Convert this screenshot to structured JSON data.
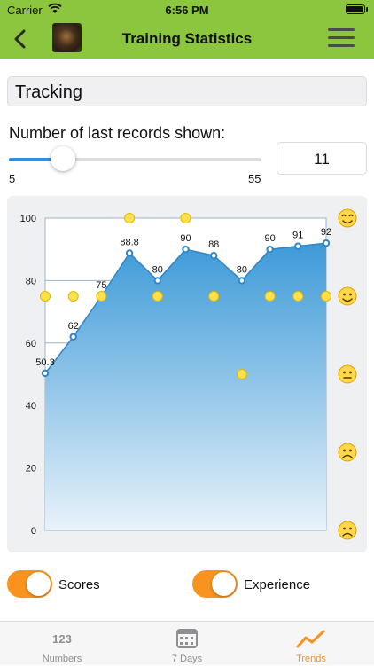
{
  "status_bar": {
    "carrier": "Carrier",
    "time": "6:56 PM"
  },
  "nav": {
    "title": "Training Statistics",
    "back_icon": "chevron-left-icon",
    "menu_icon": "hamburger-menu-icon"
  },
  "category_field": {
    "value": "Tracking"
  },
  "records_slider": {
    "label": "Number of last records shown:",
    "min_label": "5",
    "max_label": "55",
    "min": 5,
    "max": 55,
    "value": 11
  },
  "records_count": {
    "value": "11"
  },
  "chart_data": {
    "type": "line",
    "y_ticks": [
      "0",
      "20",
      "40",
      "60",
      "80",
      "100"
    ],
    "ylim": [
      0,
      100
    ],
    "grid": true,
    "series": [
      {
        "values": [
          50.3,
          62,
          75,
          88.8,
          80,
          90,
          88,
          80,
          90,
          91,
          92
        ],
        "labels": [
          "50.3",
          "62",
          "75",
          "88.8",
          "80",
          "90",
          "88",
          "80",
          "90",
          "91",
          "92"
        ]
      }
    ],
    "experience_levels": [
      4,
      4,
      4,
      5,
      4,
      5,
      4,
      3,
      4,
      4,
      4
    ],
    "experience_scale": [
      "very-sad-face-icon",
      "sad-face-icon",
      "neutral-face-icon",
      "smile-face-icon",
      "happy-face-icon"
    ],
    "colors": {
      "area_top": "#3d9ad8",
      "area_bottom": "#e8f2fa",
      "line": "#2e86c8",
      "experience_dot": "#ffe14d"
    }
  },
  "toggles": [
    {
      "label": "Scores",
      "on": true
    },
    {
      "label": "Experience",
      "on": true
    }
  ],
  "tabs": [
    {
      "label": "Numbers",
      "icon": "123",
      "active": false
    },
    {
      "label": "7 Days",
      "icon": "calendar-icon",
      "active": false
    },
    {
      "label": "Trends",
      "icon": "trend-chart-icon",
      "active": true
    }
  ],
  "colors": {
    "nav": "#8cc63f",
    "accent": "#f7931e",
    "slider": "#2f8ee0"
  }
}
